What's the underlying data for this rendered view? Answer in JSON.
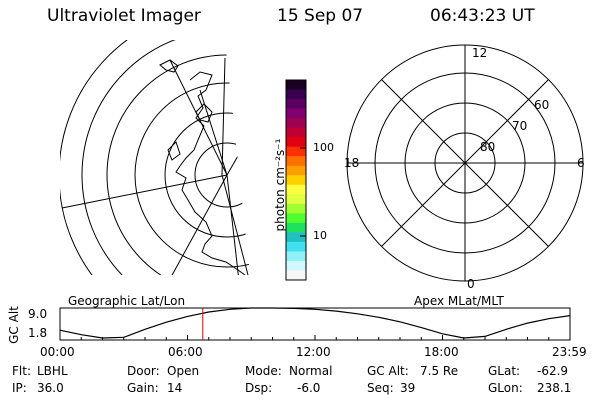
{
  "header": {
    "title": "Ultraviolet Imager",
    "date": "15 Sep 07",
    "time": "06:43:23 UT"
  },
  "colorbar": {
    "unit_label": "photon cm⁻²s⁻¹",
    "ticks": [
      "100",
      "10"
    ],
    "colors": [
      "#1a0020",
      "#3a0050",
      "#5a0060",
      "#800070",
      "#a00050",
      "#c00030",
      "#e00010",
      "#ff3000",
      "#ff7000",
      "#ffa000",
      "#ffd000",
      "#ffff40",
      "#e0ff40",
      "#a0ff30",
      "#50ff30",
      "#20e060",
      "#20c0c0",
      "#40e0f0",
      "#90f0f8",
      "#d0f8ff",
      "#f6f6f6"
    ]
  },
  "polar_plot": {
    "lat_labels": [
      "80",
      "70",
      "60"
    ],
    "mlt_labels": [
      "12",
      "18",
      "6",
      "0"
    ]
  },
  "gc_alt_panel": {
    "left_caption": "Geographic Lat/Lon",
    "right_caption": "Apex MLat/MLT",
    "ylabel": "GC Alt",
    "y_ticks": [
      "9.0",
      "1.8"
    ],
    "x_ticks": [
      "00:00",
      "06:00",
      "12:00",
      "18:00",
      "23:59"
    ],
    "marker_color": "#cc0000"
  },
  "chart_data": {
    "type": "line",
    "title": "",
    "xlabel": "",
    "ylabel": "GC Alt",
    "x": [
      0,
      1,
      2,
      3,
      4,
      5,
      6,
      7,
      8,
      9,
      10,
      11,
      12,
      13,
      14,
      15,
      16,
      17,
      18,
      19,
      20,
      21,
      22,
      23,
      24
    ],
    "values": [
      4.0,
      3.0,
      1.8,
      2.4,
      4.2,
      5.8,
      7.1,
      8.1,
      8.7,
      9.0,
      9.0,
      8.9,
      8.7,
      8.3,
      7.7,
      6.9,
      5.9,
      4.6,
      3.2,
      1.8,
      2.6,
      4.2,
      5.6,
      6.6,
      7.3
    ],
    "xlim": [
      0,
      24
    ],
    "ylim": [
      1.8,
      9.0
    ],
    "marker_x": 6.72
  },
  "status": {
    "flt_label": "Flt:",
    "flt_value": "LBHL",
    "ip_label": "IP:",
    "ip_value": "36.0",
    "door_label": "Door:",
    "door_value": "Open",
    "gain_label": "Gain:",
    "gain_value": "14",
    "mode_label": "Mode:",
    "mode_value": "Normal",
    "dsp_label": "Dsp:",
    "dsp_value": "-6.0",
    "gcalt_label": "GC Alt:",
    "gcalt_value": "7.5 Re",
    "seq_label": "Seq:",
    "seq_value": "39",
    "glat_label": "GLat:",
    "glat_value": "-62.9",
    "glon_label": "GLon:",
    "glon_value": "238.1"
  }
}
